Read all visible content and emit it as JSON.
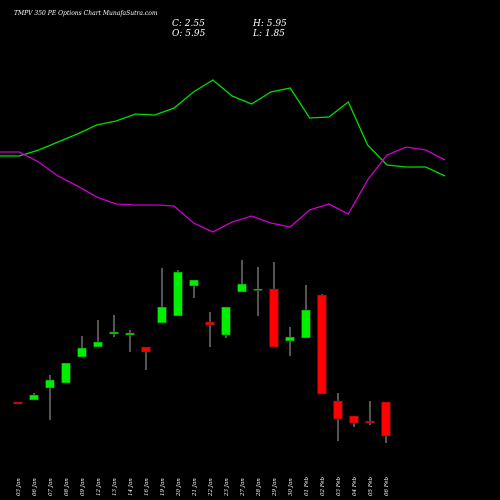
{
  "chart_data": {
    "type": "candlestick",
    "title": "TMPV 350 PE Options Chart MunafaSutra.com",
    "info": [
      "C: 2.55",
      "H: 5.95",
      "O: 5.95",
      "L: 1.85"
    ],
    "categories": [
      "03 Jan",
      "06 Jan",
      "07 Jan",
      "08 Jan",
      "09 Jan",
      "12 Jan",
      "13 Jan",
      "14 Jan",
      "16 Jan",
      "19 Jan",
      "20 Jan",
      "21 Jan",
      "22 Jan",
      "23 Jan",
      "27 Jan",
      "28 Jan",
      "29 Jan",
      "30 Jan",
      "01 Feb",
      "02 Feb",
      "03 Feb",
      "04 Feb",
      "05 Feb",
      "06 Feb"
    ],
    "open": [
      5.95,
      6.15,
      7.35,
      7.85,
      10.45,
      11.45,
      12.75,
      12.65,
      11.45,
      13.85,
      14.55,
      17.55,
      13.95,
      12.65,
      16.95,
      17.15,
      17.25,
      12.05,
      12.35,
      16.65,
      6.05,
      4.55,
      4.05,
      5.95
    ],
    "high": [
      5.95,
      6.85,
      8.65,
      9.85,
      12.55,
      14.15,
      14.65,
      13.15,
      11.45,
      19.35,
      19.15,
      18.15,
      14.95,
      15.45,
      20.15,
      19.45,
      19.95,
      13.45,
      17.65,
      16.75,
      6.85,
      4.55,
      6.05,
      5.95
    ],
    "low": [
      5.75,
      6.15,
      4.15,
      7.85,
      10.45,
      11.45,
      12.45,
      10.95,
      9.15,
      13.85,
      14.55,
      16.35,
      11.45,
      12.35,
      16.95,
      14.55,
      11.45,
      10.55,
      12.35,
      6.75,
      2.05,
      3.45,
      3.65,
      1.85
    ],
    "close": [
      5.75,
      6.65,
      8.15,
      9.85,
      11.35,
      11.95,
      12.95,
      12.85,
      10.95,
      15.45,
      18.95,
      18.15,
      13.65,
      15.45,
      17.75,
      17.25,
      11.45,
      12.45,
      15.15,
      6.75,
      4.25,
      3.85,
      3.85,
      2.55
    ],
    "up_color": "#00ee00",
    "down_color": "#ff0000",
    "ylim": [
      -3.85,
      46.15
    ],
    "lines": [
      {
        "color": "#00dd00",
        "values": [
          30.55,
          30.55,
          31.15,
          31.95,
          32.75,
          33.65,
          34.05,
          34.75,
          34.65,
          35.35,
          36.95,
          38.15,
          36.55,
          35.75,
          36.95,
          37.35,
          34.35,
          34.45,
          35.95,
          31.65,
          29.65,
          29.45,
          29.45,
          28.55
        ]
      },
      {
        "color": "#cc00cc",
        "values": [
          30.95,
          30.95,
          29.95,
          28.55,
          27.55,
          26.45,
          25.75,
          25.65,
          25.65,
          25.55,
          23.85,
          22.95,
          23.95,
          24.55,
          23.85,
          23.45,
          25.15,
          25.75,
          24.75,
          28.15,
          30.65,
          31.45,
          31.15,
          30.15
        ]
      }
    ]
  }
}
